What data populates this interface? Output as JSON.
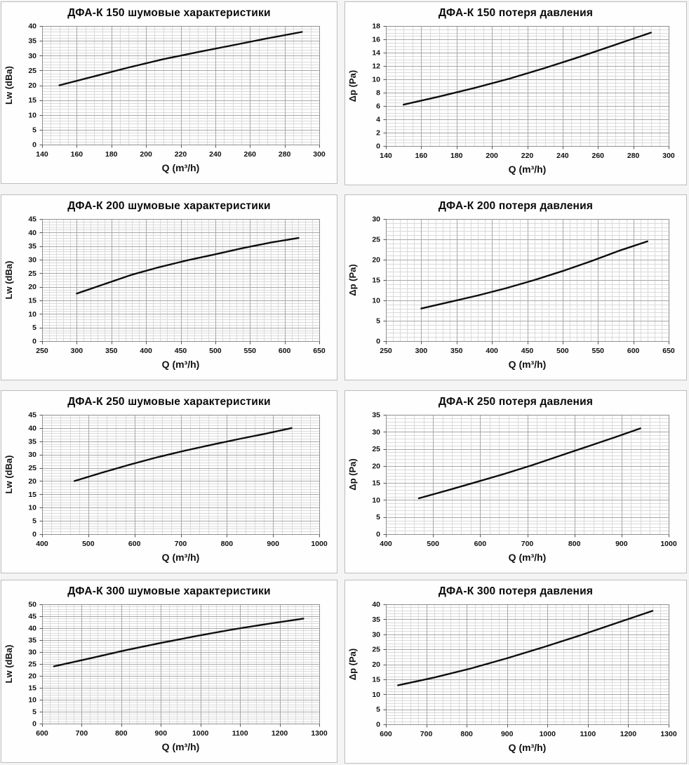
{
  "page": {
    "background": "#f4f4f4",
    "panel_background": "#fefefe",
    "panel_border": "#bdbdbd",
    "curve_color": "#0d0d0d",
    "grid_minor_color": "#dadada",
    "grid_major_color": "#a8a8a8",
    "plot_border_color": "#8f8f8f",
    "tick_color": "#555555",
    "label_color": "#111111"
  },
  "chart_data": [
    {
      "type": "line",
      "title": "ДФА-К 150 шумовые характеристики",
      "xlabel": "Q (m³/h)",
      "ylabel": "Lw (dBa)",
      "xlim": [
        140,
        300
      ],
      "ylim": [
        0,
        40
      ],
      "xticks": [
        140,
        160,
        180,
        200,
        220,
        240,
        260,
        280,
        300
      ],
      "yticks": [
        0,
        5,
        10,
        15,
        20,
        25,
        30,
        35,
        40
      ],
      "xminor": 4,
      "yminor": 5,
      "grid": true,
      "legend": false,
      "x": [
        150,
        170,
        190,
        210,
        230,
        250,
        270,
        290
      ],
      "y": [
        20,
        23,
        26,
        28.8,
        31.2,
        33.5,
        35.8,
        38
      ]
    },
    {
      "type": "line",
      "title": "ДФА-К 150 потеря давления",
      "xlabel": "Q (m³/h)",
      "ylabel": "Δp (Pa)",
      "xlim": [
        140,
        300
      ],
      "ylim": [
        0,
        18
      ],
      "xticks": [
        140,
        160,
        180,
        200,
        220,
        240,
        260,
        280,
        300
      ],
      "yticks": [
        0,
        2,
        4,
        6,
        8,
        10,
        12,
        14,
        16,
        18
      ],
      "xminor": 4,
      "yminor": 4,
      "grid": true,
      "legend": false,
      "x": [
        150,
        170,
        190,
        210,
        230,
        250,
        270,
        290
      ],
      "y": [
        6.2,
        7.4,
        8.7,
        10.1,
        11.7,
        13.4,
        15.2,
        17
      ]
    },
    {
      "type": "line",
      "title": "ДФА-К 200 шумовые характеристики",
      "xlabel": "Q (m³/h)",
      "ylabel": "Lw (dBa)",
      "xlim": [
        250,
        650
      ],
      "ylim": [
        0,
        45
      ],
      "xticks": [
        250,
        300,
        350,
        400,
        450,
        500,
        550,
        600,
        650
      ],
      "yticks": [
        0,
        5,
        10,
        15,
        20,
        25,
        30,
        35,
        40,
        45
      ],
      "xminor": 5,
      "yminor": 5,
      "grid": true,
      "legend": false,
      "x": [
        300,
        340,
        380,
        420,
        460,
        500,
        540,
        580,
        620
      ],
      "y": [
        17.5,
        21,
        24.5,
        27.3,
        29.8,
        32,
        34.3,
        36.3,
        38
      ]
    },
    {
      "type": "line",
      "title": "ДФА-К 200 потеря давления",
      "xlabel": "Q (m³/h)",
      "ylabel": "Δp (Pa)",
      "xlim": [
        250,
        650
      ],
      "ylim": [
        0,
        30
      ],
      "xticks": [
        250,
        300,
        350,
        400,
        450,
        500,
        550,
        600,
        650
      ],
      "yticks": [
        0,
        5,
        10,
        15,
        20,
        25,
        30
      ],
      "xminor": 5,
      "yminor": 5,
      "grid": true,
      "legend": false,
      "x": [
        300,
        340,
        380,
        420,
        460,
        500,
        540,
        580,
        620
      ],
      "y": [
        8,
        9.6,
        11.2,
        13,
        15,
        17.2,
        19.6,
        22.2,
        24.5
      ]
    },
    {
      "type": "line",
      "title": "ДФА-К 250 шумовые характеристики",
      "xlabel": "Q (m³/h)",
      "ylabel": "Lw (dBa)",
      "xlim": [
        400,
        1000
      ],
      "ylim": [
        0,
        45
      ],
      "xticks": [
        400,
        500,
        600,
        700,
        800,
        900,
        1000
      ],
      "yticks": [
        0,
        5,
        10,
        15,
        20,
        25,
        30,
        35,
        40,
        45
      ],
      "xminor": 5,
      "yminor": 5,
      "grid": true,
      "legend": false,
      "x": [
        470,
        530,
        590,
        650,
        710,
        770,
        830,
        890,
        940
      ],
      "y": [
        20,
        23.2,
        26.2,
        29,
        31.5,
        33.8,
        36,
        38.1,
        40
      ]
    },
    {
      "type": "line",
      "title": "ДФА-К 250 потеря давления",
      "xlabel": "Q (m³/h)",
      "ylabel": "Δp (Pa)",
      "xlim": [
        400,
        1000
      ],
      "ylim": [
        0,
        35
      ],
      "xticks": [
        400,
        500,
        600,
        700,
        800,
        900,
        1000
      ],
      "yticks": [
        0,
        5,
        10,
        15,
        20,
        25,
        30,
        35
      ],
      "xminor": 5,
      "yminor": 5,
      "grid": true,
      "legend": false,
      "x": [
        470,
        530,
        590,
        650,
        710,
        770,
        830,
        890,
        940
      ],
      "y": [
        10.5,
        12.8,
        15.2,
        17.6,
        20.2,
        23,
        25.8,
        28.6,
        31
      ]
    },
    {
      "type": "line",
      "title": "ДФА-К 300 шумовые характеристики",
      "xlabel": "Q (m³/h)",
      "ylabel": "Lw (dBa)",
      "xlim": [
        600,
        1300
      ],
      "ylim": [
        0,
        50
      ],
      "xticks": [
        600,
        700,
        800,
        900,
        1000,
        1100,
        1200,
        1300
      ],
      "yticks": [
        0,
        5,
        10,
        15,
        20,
        25,
        30,
        35,
        40,
        45,
        50
      ],
      "xminor": 5,
      "yminor": 5,
      "grid": true,
      "legend": false,
      "x": [
        630,
        720,
        810,
        900,
        990,
        1080,
        1170,
        1260
      ],
      "y": [
        24,
        27.3,
        30.7,
        33.8,
        36.7,
        39.4,
        41.8,
        44
      ]
    },
    {
      "type": "line",
      "title": "ДФА-К 300 потеря давления",
      "xlabel": "Q (m³/h)",
      "ylabel": "Δp (Pa)",
      "xlim": [
        600,
        1300
      ],
      "ylim": [
        0,
        40
      ],
      "xticks": [
        600,
        700,
        800,
        900,
        1000,
        1100,
        1200,
        1300
      ],
      "yticks": [
        0,
        5,
        10,
        15,
        20,
        25,
        30,
        35,
        40
      ],
      "xminor": 5,
      "yminor": 5,
      "grid": true,
      "legend": false,
      "x": [
        630,
        720,
        810,
        900,
        990,
        1080,
        1170,
        1260
      ],
      "y": [
        13,
        15.6,
        18.6,
        22,
        25.7,
        29.6,
        33.7,
        37.8
      ]
    }
  ]
}
